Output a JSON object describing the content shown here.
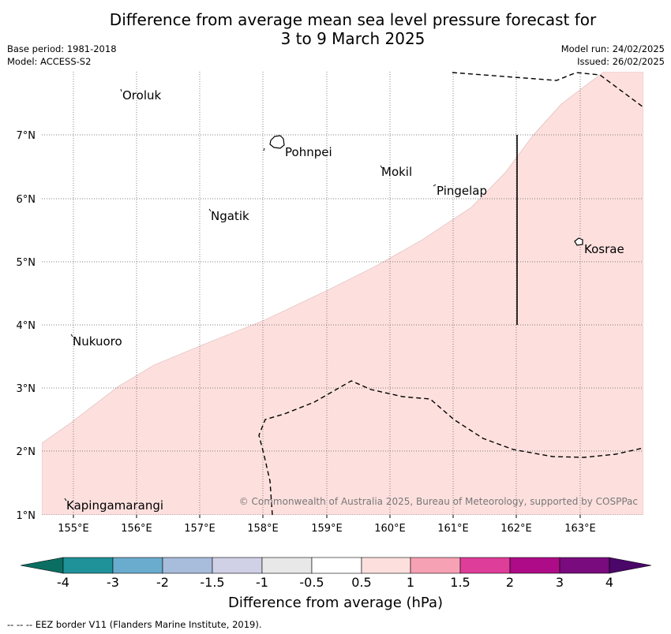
{
  "title_line1": "Difference from average mean sea level pressure forecast for",
  "title_line2": "3 to 9 March 2025",
  "base_period": "Base period: 1981-2018",
  "model": "Model: ACCESS-S2",
  "model_run": "Model run: 24/02/2025",
  "issued": "Issued: 26/02/2025",
  "longitude_ticks": [
    "155°E",
    "156°E",
    "157°E",
    "158°E",
    "159°E",
    "160°E",
    "161°E",
    "162°E",
    "163°E"
  ],
  "latitude_ticks": [
    "7°N",
    "6°N",
    "5°N",
    "4°N",
    "3°N",
    "2°N",
    "1°N"
  ],
  "places": [
    "Oroluk",
    "Pohnpei",
    "Mokil",
    "Pingelap",
    "Ngatik",
    "Kosrae",
    "Nukuoro",
    "Kapingamarangi"
  ],
  "credit": "© Commonwealth of Australia 2025, Bureau of Meteorology, supported by COSPPac",
  "colorbar": {
    "labels": [
      "-4",
      "-3",
      "-2",
      "-1.5",
      "-1",
      "-0.5",
      "0.5",
      "1",
      "1.5",
      "2",
      "3",
      "4"
    ],
    "title": "Difference from average (hPa)",
    "colors": [
      "#0b6e63",
      "#1f9198",
      "#6aacce",
      "#a8bcdc",
      "#d0d0e6",
      "#e8e8e8",
      "#ffffff",
      "#fde0de",
      "#f7a1b5",
      "#de3d9a",
      "#ad0b87",
      "#7a0b7e",
      "#4a0668"
    ]
  },
  "map_fill_color": "#fde0de",
  "footnote": "--  --  -- EEZ border V11 (Flanders Marine Institute, 2019)."
}
